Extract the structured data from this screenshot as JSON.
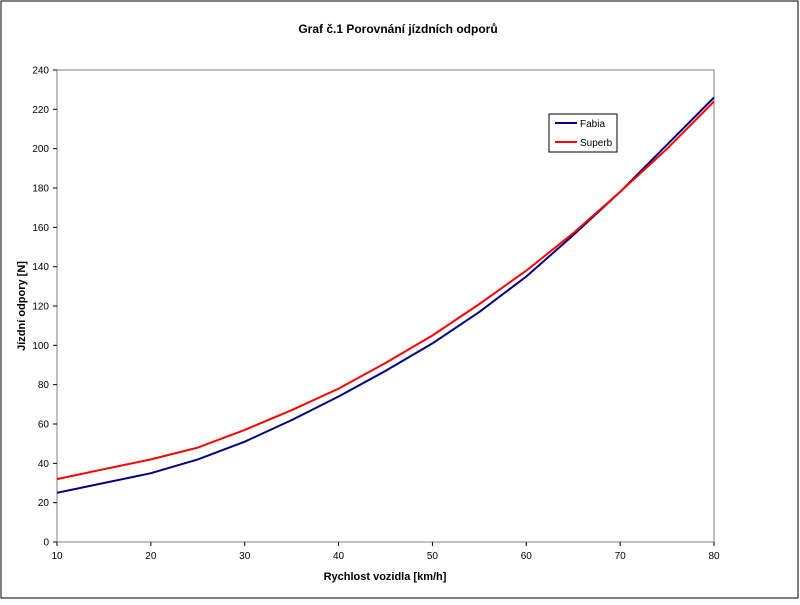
{
  "chart_data": {
    "type": "line",
    "title": "Graf č.1 Porovnání jízdních odporů",
    "xlabel": "Rychlost vozidla [km/h]",
    "ylabel": "Jízdní odpory [N]",
    "xlim": [
      10,
      80
    ],
    "ylim": [
      0,
      240
    ],
    "x_ticks": [
      10,
      20,
      30,
      40,
      50,
      60,
      70,
      80
    ],
    "y_ticks": [
      0,
      20,
      40,
      60,
      80,
      100,
      120,
      140,
      160,
      180,
      200,
      220,
      240
    ],
    "grid": false,
    "legend_position": "top-right",
    "x": [
      10,
      15,
      20,
      25,
      30,
      35,
      40,
      45,
      50,
      55,
      60,
      65,
      70,
      75,
      80
    ],
    "series": [
      {
        "name": "Fabia",
        "color": "#000080",
        "values": [
          25,
          30,
          35,
          42,
          51,
          62,
          74,
          87,
          101,
          117,
          135,
          156,
          178,
          202,
          226
        ]
      },
      {
        "name": "Superb",
        "color": "#ff0000",
        "values": [
          32,
          37,
          42,
          48,
          57,
          67,
          78,
          91,
          105,
          121,
          138,
          157,
          178,
          200,
          224
        ]
      }
    ]
  }
}
